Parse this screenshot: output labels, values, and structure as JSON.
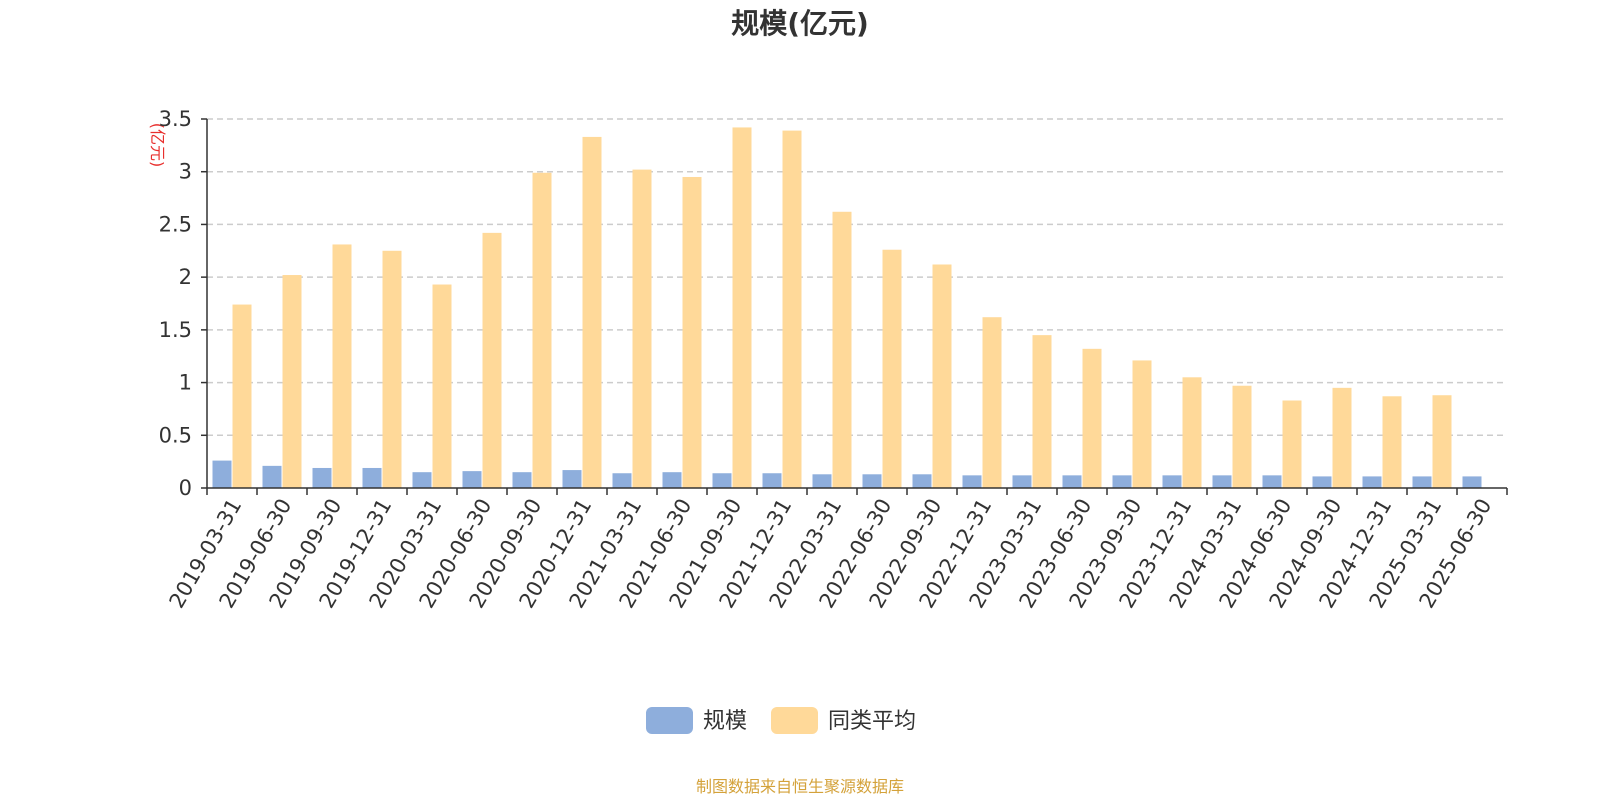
{
  "chart_data": {
    "type": "bar",
    "title": "规模(亿元)",
    "ylabel": "(亿元)",
    "ylim": [
      0,
      3.5
    ],
    "yticks": [
      0,
      0.5,
      1,
      1.5,
      2,
      2.5,
      3,
      3.5
    ],
    "ytick_labels": [
      "0",
      "0.5",
      "1",
      "1.5",
      "2",
      "2.5",
      "3",
      "3.5"
    ],
    "grid": true,
    "legend_position": "bottom-center",
    "categories": [
      "2019-03-31",
      "2019-06-30",
      "2019-09-30",
      "2019-12-31",
      "2020-03-31",
      "2020-06-30",
      "2020-09-30",
      "2020-12-31",
      "2021-03-31",
      "2021-06-30",
      "2021-09-30",
      "2021-12-31",
      "2022-03-31",
      "2022-06-30",
      "2022-09-30",
      "2022-12-31",
      "2023-03-31",
      "2023-06-30",
      "2023-09-30",
      "2023-12-31",
      "2024-03-31",
      "2024-06-30",
      "2024-09-30",
      "2024-12-31",
      "2025-03-31",
      "2025-06-30"
    ],
    "series": [
      {
        "name": "规模",
        "color": "#8eaedc",
        "values": [
          0.26,
          0.21,
          0.19,
          0.19,
          0.15,
          0.16,
          0.15,
          0.17,
          0.14,
          0.15,
          0.14,
          0.14,
          0.13,
          0.13,
          0.13,
          0.12,
          0.12,
          0.12,
          0.12,
          0.12,
          0.12,
          0.12,
          0.11,
          0.11,
          0.11,
          0.11
        ]
      },
      {
        "name": "同类平均",
        "color": "#ffd999",
        "values": [
          1.74,
          2.02,
          2.31,
          2.25,
          1.93,
          2.42,
          2.99,
          3.33,
          3.02,
          2.95,
          3.42,
          3.39,
          2.62,
          2.26,
          2.12,
          1.62,
          1.45,
          1.32,
          1.21,
          1.05,
          0.97,
          0.83,
          0.95,
          0.87,
          0.88,
          null
        ]
      }
    ]
  },
  "source_note": "制图数据来自恒生聚源数据库",
  "colors": {
    "unit_label": "#e8302e",
    "source_note": "#d4a23a",
    "axis": "#333333",
    "grid": "#cccccc"
  }
}
